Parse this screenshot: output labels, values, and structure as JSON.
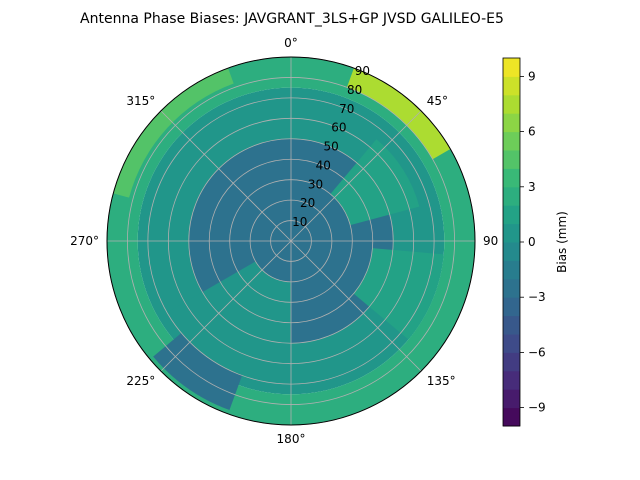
{
  "chart_data": {
    "type": "heatmap",
    "subtype": "polar-contour",
    "title": "Antenna Phase Biases: JAVGRANT_3LS+GP JVSD GALILEO-E5",
    "theta_ticks": [
      {
        "deg": 0,
        "label": "0°"
      },
      {
        "deg": 45,
        "label": "45°"
      },
      {
        "deg": 90,
        "label": "90"
      },
      {
        "deg": 135,
        "label": "135°"
      },
      {
        "deg": 180,
        "label": "180°"
      },
      {
        "deg": 225,
        "label": "225°"
      },
      {
        "deg": 270,
        "label": "270°"
      },
      {
        "deg": 315,
        "label": "315°"
      }
    ],
    "radial_ticks": [
      10,
      20,
      30,
      40,
      50,
      60,
      70,
      80,
      90
    ],
    "radial_range": [
      0,
      90
    ],
    "theta_direction": "clockwise",
    "theta_zero": "top",
    "grid": true,
    "colorbar": {
      "label": "Bias (mm)",
      "range": [
        -10,
        10
      ],
      "ticks": [
        -9,
        -6,
        -3,
        0,
        3,
        6,
        9
      ],
      "tick_labels": [
        "−9",
        "−6",
        "−3",
        "0",
        "3",
        "6",
        "9"
      ],
      "levels": 20,
      "colormap": "viridis"
    },
    "regions": [
      {
        "zenith_from": 0,
        "zenith_to": 50,
        "azimuth_from": 0,
        "azimuth_to": 360,
        "bias_mm": -2.5
      },
      {
        "zenith_from": 50,
        "zenith_to": 75,
        "azimuth_from": 0,
        "azimuth_to": 360,
        "bias_mm": 0.5
      },
      {
        "zenith_from": 75,
        "zenith_to": 90,
        "azimuth_from": 0,
        "azimuth_to": 360,
        "bias_mm": 2.0
      },
      {
        "zenith_from": 30,
        "zenith_to": 65,
        "azimuth_from": 40,
        "azimuth_to": 75,
        "bias_mm": 1.5
      },
      {
        "zenith_from": 40,
        "zenith_to": 75,
        "azimuth_from": 95,
        "azimuth_to": 130,
        "bias_mm": 1.5
      },
      {
        "zenith_from": 20,
        "zenith_to": 70,
        "azimuth_from": 180,
        "azimuth_to": 240,
        "bias_mm": 0.5
      },
      {
        "zenith_from": 80,
        "zenith_to": 90,
        "azimuth_from": 20,
        "azimuth_to": 60,
        "bias_mm": 7.0
      },
      {
        "zenith_from": 82,
        "zenith_to": 90,
        "azimuth_from": 285,
        "azimuth_to": 340,
        "bias_mm": 4.5
      },
      {
        "zenith_from": 70,
        "zenith_to": 88,
        "azimuth_from": 200,
        "azimuth_to": 230,
        "bias_mm": -2.5
      }
    ]
  }
}
